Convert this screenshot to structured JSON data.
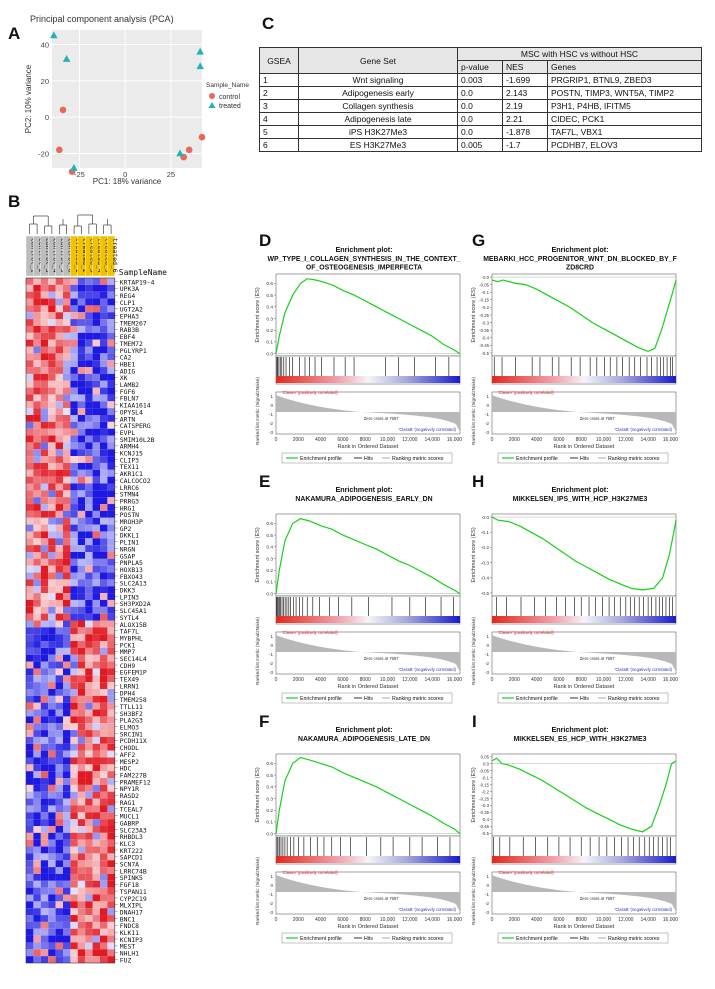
{
  "labels": {
    "A": "A",
    "B": "B",
    "C": "C",
    "D": "D",
    "E": "E",
    "F": "F",
    "G": "G",
    "H": "H",
    "I": "I"
  },
  "pca": {
    "title": "Principal component analysis (PCA)",
    "xlabel": "PC1: 18% variance",
    "ylabel": "PC2: 10% variance",
    "legend_title": "Sample_Name",
    "legend": [
      "control",
      "treated"
    ],
    "colors": {
      "control": "#e8675a",
      "treated": "#22b3b8"
    },
    "xticks": [
      "-25",
      "0",
      "25"
    ],
    "yticks": [
      "40",
      "20",
      "0",
      "-20"
    ]
  },
  "table": {
    "h_gsea": "GSEA",
    "h_geneset": "Gene Set",
    "h_msc": "MSC with HSC vs without HSC",
    "h_p": "p-value",
    "h_nes": "NES",
    "h_genes": "Genes",
    "rows": [
      {
        "id": "1",
        "set": "Wnt signaling",
        "p": "0.003",
        "nes": "-1.699",
        "genes": "PRGRIP1, BTNL9, ZBED3"
      },
      {
        "id": "2",
        "set": "Adipogenesis early",
        "p": "0.0",
        "nes": "2.143",
        "genes": "POSTN, TIMP3, WNT5A, TIMP2"
      },
      {
        "id": "3",
        "set": "Collagen synthesis",
        "p": "0.0",
        "nes": "2.19",
        "genes": "P3H1, P4HB, IFITM5"
      },
      {
        "id": "4",
        "set": "Adipogenesis late",
        "p": "0.0",
        "nes": "2.21",
        "genes": "CIDEC, PCK1"
      },
      {
        "id": "5",
        "set": "iPS H3K27Me3",
        "p": "0.0",
        "nes": "-1.878",
        "genes": "TAF7L, VBX1"
      },
      {
        "id": "6",
        "set": "ES H3K27Me3",
        "p": "0.005",
        "nes": "-1.7",
        "genes": "PCDHB7, ELOV3"
      }
    ]
  },
  "heatmap": {
    "samples": [
      "control_1",
      "control_2",
      "control_3",
      "control_4",
      "control_5",
      "control_6",
      "treated_1",
      "treated_2",
      "treated_3",
      "treated_4",
      "treated_5",
      "treated_6"
    ],
    "header": "SampleName",
    "genes": [
      "KRTAP19-4",
      "UPK3A",
      "REG4",
      "CLP1",
      "UGT2A2",
      "EPHA3",
      "TMEM267",
      "RAB3B",
      "EBF4",
      "TMEM72",
      "PGLYRP1",
      "CA2",
      "HBE1",
      "ADIG",
      "XK",
      "LAMB2",
      "FGF6",
      "FBLN7",
      "KIAA1614",
      "OPYSL4",
      "ARTN",
      "CATSPERG",
      "EVPL",
      "SMIM10L2B",
      "ARMH4",
      "KCNJ15",
      "CLIP3",
      "TEX11",
      "AKR1C1",
      "CALCOCO2",
      "LRRC6",
      "STMN4",
      "PRRG3",
      "HRG1",
      "POSTN",
      "MROH3P",
      "GP2",
      "DKKL1",
      "PLIN1",
      "NRGN",
      "GSAP",
      "PNPLA5",
      "HOXB13",
      "FBXO43",
      "SLC2A13",
      "DKK3",
      "LPIN3",
      "SH3PXD2A",
      "SLC45A1",
      "SYTL4",
      "ALOX15B",
      "TAF7L",
      "MYBPHL",
      "PCK1",
      "MMP7",
      "SEC14L4",
      "CDH9",
      "EGFEM1P",
      "TEX49",
      "LRRN1",
      "DPH4",
      "TMEM258",
      "TTLL11",
      "SH3BF2",
      "PLA2G3",
      "ELMO3",
      "SRCIN1",
      "PCDH11X",
      "CHODL",
      "AFF2",
      "MESP2",
      "HDC",
      "FAM227B",
      "PRAMEF12",
      "NPY1R",
      "RASD2",
      "RAG1",
      "TCEAL7",
      "MUCL1",
      "GABRP",
      "SLC23A3",
      "RHBDL3",
      "KLC3",
      "KRT222",
      "SAPCD1",
      "SCN7A",
      "LRRC74B",
      "SPINK5",
      "FGF18",
      "TSPAN11",
      "CYP2C19",
      "MLXIPL",
      "DNAH17",
      "BNC1",
      "FNDC8",
      "KLK11",
      "KCNIP3",
      "MEST",
      "NHLH1",
      "FUZ"
    ]
  },
  "gsea": {
    "title_common": "Enrichment plot:",
    "es_label": "Enrichment score (ES)",
    "rank_label": "Ranked list metric (Signal2Noise)",
    "x_label": "Rank in Ordered Dataset",
    "pos_label": "'ClassA' (positively correlated)",
    "neg_label": "'ClassB' (negatively correlated)",
    "legend": [
      "Enrichment profile",
      "Hits",
      "Ranking metric scores"
    ],
    "xticks": [
      "0",
      "2000",
      "4000",
      "6000",
      "8000",
      "10,000",
      "12,000",
      "14,000",
      "16,000"
    ],
    "colors": {
      "profile": "#18d018",
      "hits": "#000000",
      "metric": "#b8b8b8"
    },
    "plots": [
      {
        "title1": "WP_TYPE_I_COLLAGEN_SYNTHESIS_IN_THE_CONTEXT_",
        "title2": "OF_OSTEOGENESIS_IMPERFECTA",
        "yticks": [
          "0.6",
          "0.5",
          "0.4",
          "0.3",
          "0.2",
          "0.1",
          "0.0"
        ],
        "zero": "Zero cross at 7687"
      },
      {
        "title1": "MEBARKI_HCC_PROGENITOR_WNT_DN_BLOCKED_BY_F",
        "title2": "ZD8CRD",
        "yticks": [
          "0.0",
          "-0.05",
          "-0.1",
          "-0.15",
          "-0.2",
          "-0.25",
          "-0.3",
          "-0.35",
          "-0.4",
          "-0.45",
          "-0.5"
        ],
        "zero": "Zero cross at 7687"
      },
      {
        "title1": "NAKAMURA_ADIPOGENESIS_EARLY_DN",
        "title2": "",
        "yticks": [
          "0.6",
          "0.5",
          "0.4",
          "0.3",
          "0.2",
          "0.1",
          "0.0"
        ],
        "zero": "Zero cross at 7687"
      },
      {
        "title1": "MIKKELSEN_IPS_WITH_HCP_H3K27ME3",
        "title2": "",
        "yticks": [
          "0.0",
          "-0.1",
          "-0.2",
          "-0.3",
          "-0.4",
          "-0.5"
        ],
        "zero": "Zero cross at 7687"
      },
      {
        "title1": "NAKAMURA_ADIPOGENESIS_LATE_DN",
        "title2": "",
        "yticks": [
          "0.6",
          "0.5",
          "0.4",
          "0.3",
          "0.2",
          "0.1",
          "0.0"
        ],
        "zero": "Zero cross at 7687"
      },
      {
        "title1": "MIKKELSEN_ES_HCP_WITH_H3K27ME3",
        "title2": "",
        "yticks": [
          "0.05",
          "0.0",
          "-0.05",
          "-0.1",
          "-0.15",
          "-0.2",
          "-0.25",
          "-0.3",
          "-0.35",
          "-0.4",
          "-0.45",
          "-0.5"
        ],
        "zero": "Zero cross at 7687"
      }
    ]
  },
  "chart_data": [
    {
      "type": "scatter",
      "title": "Principal component analysis (PCA)",
      "xlabel": "PC1: 18% variance",
      "ylabel": "PC2: 10% variance",
      "xlim": [
        -40,
        42
      ],
      "ylim": [
        -28,
        48
      ],
      "legend": "right",
      "series": [
        {
          "name": "control",
          "points": [
            [
              -34,
              4
            ],
            [
              -36,
              -18
            ],
            [
              -29,
              -30
            ],
            [
              32,
              -22
            ],
            [
              35,
              -18
            ],
            [
              42,
              -11
            ]
          ]
        },
        {
          "name": "treated",
          "points": [
            [
              -39,
              45
            ],
            [
              -32,
              32
            ],
            [
              -28,
              -28
            ],
            [
              30,
              -20
            ],
            [
              41,
              36
            ],
            [
              41,
              28
            ]
          ]
        }
      ]
    },
    {
      "type": "line",
      "title": "WP_TYPE_I_COLLAGEN_SYNTHESIS_IN_THE_CONTEXT_OF_OSTEOGENESIS_IMPERFECTA",
      "xlabel": "Rank in Ordered Dataset",
      "ylabel": "Enrichment score (ES)",
      "xlim": [
        0,
        16500
      ],
      "ylim": [
        -0.02,
        0.68
      ],
      "x": [
        0,
        300,
        800,
        1500,
        2200,
        2800,
        3500,
        4300,
        5200,
        6000,
        7000,
        8000,
        9000,
        10000,
        11000,
        12000,
        13000,
        14000,
        15000,
        16000,
        16500
      ],
      "y": [
        0,
        0.15,
        0.35,
        0.5,
        0.6,
        0.64,
        0.63,
        0.61,
        0.58,
        0.54,
        0.5,
        0.45,
        0.4,
        0.35,
        0.3,
        0.25,
        0.2,
        0.15,
        0.08,
        0.03,
        0.0
      ]
    },
    {
      "type": "line",
      "title": "MEBARKI_HCC_PROGENITOR_WNT_DN_BLOCKED_BY_FZD8CRD",
      "xlabel": "Rank in Ordered Dataset",
      "ylabel": "Enrichment score (ES)",
      "xlim": [
        0,
        16500
      ],
      "ylim": [
        -0.52,
        0.02
      ],
      "x": [
        0,
        500,
        1000,
        2000,
        3000,
        4000,
        5000,
        6000,
        7000,
        8000,
        9000,
        10000,
        11000,
        12000,
        13000,
        14000,
        14600,
        15200,
        15800,
        16200,
        16500
      ],
      "y": [
        -0.02,
        -0.03,
        -0.02,
        -0.04,
        -0.05,
        -0.08,
        -0.12,
        -0.16,
        -0.2,
        -0.25,
        -0.3,
        -0.34,
        -0.38,
        -0.42,
        -0.46,
        -0.49,
        -0.47,
        -0.35,
        -0.2,
        -0.1,
        -0.02
      ]
    },
    {
      "type": "line",
      "title": "NAKAMURA_ADIPOGENESIS_EARLY_DN",
      "xlabel": "Rank in Ordered Dataset",
      "ylabel": "Enrichment score (ES)",
      "xlim": [
        0,
        16500
      ],
      "ylim": [
        -0.02,
        0.68
      ],
      "x": [
        0,
        300,
        800,
        1500,
        2200,
        3000,
        4000,
        5000,
        6000,
        7000,
        8000,
        9000,
        10000,
        11000,
        12000,
        13000,
        14000,
        15000,
        16000,
        16500
      ],
      "y": [
        0,
        0.2,
        0.45,
        0.6,
        0.64,
        0.62,
        0.58,
        0.55,
        0.5,
        0.46,
        0.42,
        0.38,
        0.33,
        0.28,
        0.24,
        0.19,
        0.14,
        0.08,
        0.03,
        0.0
      ]
    },
    {
      "type": "line",
      "title": "MIKKELSEN_IPS_WITH_HCP_H3K27ME3",
      "xlabel": "Rank in Ordered Dataset",
      "ylabel": "Enrichment score (ES)",
      "xlim": [
        0,
        16500
      ],
      "ylim": [
        -0.52,
        0.02
      ],
      "x": [
        0,
        500,
        1500,
        2500,
        3500,
        4500,
        5500,
        6500,
        7500,
        8500,
        9500,
        10500,
        11500,
        12500,
        13500,
        14500,
        15300,
        15900,
        16300,
        16500
      ],
      "y": [
        0,
        -0.02,
        -0.03,
        -0.06,
        -0.1,
        -0.14,
        -0.19,
        -0.24,
        -0.29,
        -0.33,
        -0.37,
        -0.41,
        -0.44,
        -0.47,
        -0.48,
        -0.47,
        -0.4,
        -0.25,
        -0.1,
        -0.02
      ]
    },
    {
      "type": "line",
      "title": "NAKAMURA_ADIPOGENESIS_LATE_DN",
      "xlabel": "Rank in Ordered Dataset",
      "ylabel": "Enrichment score (ES)",
      "xlim": [
        0,
        16500
      ],
      "ylim": [
        -0.02,
        0.68
      ],
      "x": [
        0,
        300,
        800,
        1500,
        2200,
        3000,
        4000,
        5000,
        6000,
        7000,
        8000,
        9000,
        10000,
        11000,
        12000,
        13000,
        14000,
        15000,
        16000,
        16500
      ],
      "y": [
        0,
        0.2,
        0.45,
        0.6,
        0.65,
        0.63,
        0.6,
        0.57,
        0.52,
        0.48,
        0.44,
        0.4,
        0.35,
        0.3,
        0.25,
        0.2,
        0.15,
        0.09,
        0.04,
        0.0
      ]
    },
    {
      "type": "line",
      "title": "MIKKELSEN_ES_HCP_WITH_H3K27ME3",
      "xlabel": "Rank in Ordered Dataset",
      "ylabel": "Enrichment score (ES)",
      "xlim": [
        0,
        16500
      ],
      "ylim": [
        -0.52,
        0.07
      ],
      "x": [
        0,
        400,
        900,
        1500,
        2500,
        3500,
        4500,
        5500,
        6500,
        7500,
        8500,
        9500,
        10500,
        11500,
        12500,
        13500,
        14300,
        15000,
        15600,
        16100,
        16500
      ],
      "y": [
        0.02,
        0.04,
        0.0,
        -0.01,
        -0.04,
        -0.08,
        -0.12,
        -0.17,
        -0.22,
        -0.27,
        -0.32,
        -0.36,
        -0.4,
        -0.44,
        -0.47,
        -0.49,
        -0.45,
        -0.3,
        -0.15,
        0.0,
        0.02
      ]
    }
  ]
}
